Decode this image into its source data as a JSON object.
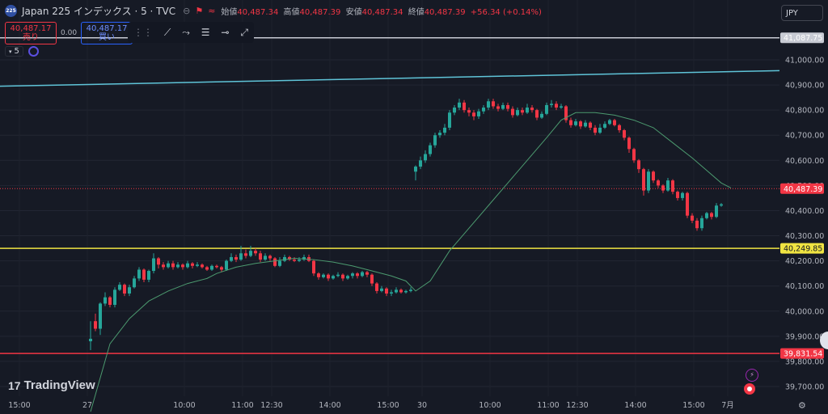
{
  "legend": {
    "badge": "225",
    "symbol": "Japan 225 インデックス · 5 · TVC",
    "open_label": "始値",
    "open": "40,487.34",
    "high_label": "高値",
    "high": "40,487.39",
    "low_label": "安値",
    "low": "40,487.34",
    "close_label": "終値",
    "close": "40,487.39",
    "change": "+56.34 (+0.14%)"
  },
  "trade": {
    "sell_price": "40,487.17",
    "sell_label": "売り",
    "spread": "0.00",
    "buy_price": "40,487.17",
    "buy_label": "買い"
  },
  "interval": {
    "value": "5"
  },
  "currency": "JPY",
  "logo_text": "TradingView",
  "colors": {
    "up": "#26a69a",
    "down": "#f23645",
    "ma": "#4c9a6f",
    "trendline": "#5fc4d8",
    "white_line": "#c8cbd4",
    "yellow_line": "#f0e442",
    "red_line": "#f23645",
    "bg": "#161a25"
  },
  "icons": [
    "magnet-icon",
    "trend-line-icon",
    "path-icon",
    "horizontal-rays-icon",
    "ray-icon",
    "extended-line-icon",
    "lightning-alert-icon",
    "record-icon",
    "gear-icon"
  ],
  "chart_data": {
    "type": "candlestick",
    "y_ticks": [
      39700,
      39800,
      39900,
      40000,
      40100,
      40200,
      40300,
      40400,
      40500,
      40600,
      40700,
      40800,
      40900,
      41000
    ],
    "y_tick_labels": [
      "39,700.00",
      "39,800.00",
      "39,900.00",
      "40,000.00",
      "40,100.00",
      "40,200.00",
      "40,300.00",
      "40,400.00",
      "40,500.00",
      "40,600.00",
      "40,700.00",
      "40,800.00",
      "40,900.00",
      "41,000.00"
    ],
    "ylim": [
      39660,
      41150
    ],
    "x_labels": [
      {
        "label": "15:00",
        "i": -14
      },
      {
        "label": "27",
        "i": 0
      },
      {
        "label": "10:00",
        "i": 20
      },
      {
        "label": "11:00",
        "i": 32
      },
      {
        "label": "12:30",
        "i": 38
      },
      {
        "label": "14:00",
        "i": 50
      },
      {
        "label": "15:00",
        "i": 62
      },
      {
        "label": "30",
        "i": 69
      },
      {
        "label": "10:00",
        "i": 83
      },
      {
        "label": "11:00",
        "i": 95
      },
      {
        "label": "12:30",
        "i": 101
      },
      {
        "label": "14:00",
        "i": 113
      },
      {
        "label": "15:00",
        "i": 125
      },
      {
        "label": "7月",
        "i": 132
      }
    ],
    "horizontal_lines": [
      {
        "price": 41087.75,
        "label": "41,087.75",
        "color": "#c8cbd4"
      },
      {
        "price": 40487.39,
        "label": "40,487.39",
        "color": "#f23645",
        "dotted": true
      },
      {
        "price": 40249.85,
        "label": "40,249.85",
        "color": "#f0e442"
      },
      {
        "price": 39831.54,
        "label": "39,831.54",
        "color": "#f23645"
      }
    ],
    "trendline": {
      "from": 40895,
      "to": 40957
    },
    "candles": [
      [
        39880,
        39890,
        39845,
        39960
      ],
      [
        39960,
        39930,
        39920,
        39990
      ],
      [
        39930,
        40030,
        39905,
        40035
      ],
      [
        40030,
        40055,
        40020,
        40075
      ],
      [
        40055,
        40025,
        40015,
        40060
      ],
      [
        40025,
        40085,
        40015,
        40095
      ],
      [
        40085,
        40105,
        40080,
        40115
      ],
      [
        40105,
        40070,
        40060,
        40110
      ],
      [
        40070,
        40095,
        40060,
        40105
      ],
      [
        40095,
        40130,
        40090,
        40140
      ],
      [
        40130,
        40165,
        40120,
        40175
      ],
      [
        40165,
        40125,
        40115,
        40170
      ],
      [
        40125,
        40160,
        40115,
        40165
      ],
      [
        40160,
        40210,
        40150,
        40230
      ],
      [
        40210,
        40185,
        40170,
        40215
      ],
      [
        40185,
        40175,
        40165,
        40195
      ],
      [
        40175,
        40190,
        40170,
        40200
      ],
      [
        40190,
        40175,
        40165,
        40200
      ],
      [
        40175,
        40185,
        40170,
        40195
      ],
      [
        40185,
        40175,
        40165,
        40190
      ],
      [
        40175,
        40190,
        40170,
        40200
      ],
      [
        40190,
        40180,
        40170,
        40195
      ],
      [
        40180,
        40185,
        40175,
        40195
      ],
      [
        40185,
        40175,
        40170,
        40190
      ],
      [
        40175,
        40165,
        40160,
        40180
      ],
      [
        40165,
        40180,
        40160,
        40185
      ],
      [
        40180,
        40175,
        40170,
        40185
      ],
      [
        40175,
        40165,
        40155,
        40180
      ],
      [
        40165,
        40200,
        40160,
        40205
      ],
      [
        40200,
        40215,
        40195,
        40230
      ],
      [
        40215,
        40205,
        40195,
        40225
      ],
      [
        40205,
        40230,
        40200,
        40260
      ],
      [
        40230,
        40220,
        40210,
        40245
      ],
      [
        40220,
        40240,
        40215,
        40260
      ],
      [
        40240,
        40230,
        40220,
        40250
      ],
      [
        40230,
        40205,
        40195,
        40240
      ],
      [
        40205,
        40220,
        40200,
        40230
      ],
      [
        40220,
        40210,
        40200,
        40225
      ],
      [
        40210,
        40180,
        40175,
        40215
      ],
      [
        40180,
        40200,
        40175,
        40215
      ],
      [
        40200,
        40215,
        40195,
        40225
      ],
      [
        40215,
        40205,
        40200,
        40220
      ],
      [
        40205,
        40200,
        40195,
        40215
      ],
      [
        40200,
        40205,
        40195,
        40215
      ],
      [
        40205,
        40215,
        40200,
        40225
      ],
      [
        40215,
        40200,
        40195,
        40225
      ],
      [
        40200,
        40150,
        40140,
        40205
      ],
      [
        40150,
        40135,
        40125,
        40155
      ],
      [
        40135,
        40145,
        40130,
        40150
      ],
      [
        40145,
        40130,
        40120,
        40150
      ],
      [
        40130,
        40140,
        40125,
        40145
      ],
      [
        40140,
        40145,
        40135,
        40155
      ],
      [
        40145,
        40130,
        40120,
        40150
      ],
      [
        40130,
        40140,
        40125,
        40145
      ],
      [
        40140,
        40150,
        40130,
        40155
      ],
      [
        40150,
        40140,
        40130,
        40155
      ],
      [
        40140,
        40155,
        40135,
        40160
      ],
      [
        40155,
        40145,
        40135,
        40160
      ],
      [
        40145,
        40110,
        40100,
        40150
      ],
      [
        40110,
        40080,
        40070,
        40115
      ],
      [
        40080,
        40090,
        40075,
        40100
      ],
      [
        40090,
        40070,
        40060,
        40095
      ],
      [
        40070,
        40075,
        40060,
        40085
      ],
      [
        40075,
        40085,
        40070,
        40095
      ],
      [
        40085,
        40075,
        40070,
        40090
      ],
      [
        40075,
        40080,
        40070,
        40085
      ],
      [
        40080,
        40085,
        40075,
        40095
      ],
      [
        40555,
        40575,
        40520,
        40580
      ],
      [
        40575,
        40600,
        40565,
        40615
      ],
      [
        40600,
        40625,
        40590,
        40640
      ],
      [
        40625,
        40660,
        40615,
        40670
      ],
      [
        40660,
        40700,
        40650,
        40710
      ],
      [
        40700,
        40710,
        40690,
        40720
      ],
      [
        40710,
        40730,
        40700,
        40745
      ],
      [
        40730,
        40790,
        40720,
        40800
      ],
      [
        40790,
        40810,
        40780,
        40820
      ],
      [
        40810,
        40830,
        40800,
        40845
      ],
      [
        40830,
        40800,
        40790,
        40840
      ],
      [
        40800,
        40790,
        40775,
        40810
      ],
      [
        40790,
        40775,
        40760,
        40800
      ],
      [
        40775,
        40795,
        40765,
        40805
      ],
      [
        40795,
        40810,
        40785,
        40820
      ],
      [
        40810,
        40835,
        40800,
        40845
      ],
      [
        40835,
        40815,
        40805,
        40845
      ],
      [
        40815,
        40805,
        40795,
        40825
      ],
      [
        40805,
        40820,
        40800,
        40830
      ],
      [
        40820,
        40805,
        40795,
        40830
      ],
      [
        40805,
        40780,
        40770,
        40815
      ],
      [
        40780,
        40800,
        40775,
        40810
      ],
      [
        40800,
        40790,
        40780,
        40810
      ],
      [
        40790,
        40810,
        40785,
        40825
      ],
      [
        40810,
        40800,
        40790,
        40820
      ],
      [
        40800,
        40770,
        40760,
        40805
      ],
      [
        40770,
        40785,
        40765,
        40795
      ],
      [
        40785,
        40820,
        40780,
        40830
      ],
      [
        40820,
        40825,
        40810,
        40840
      ],
      [
        40825,
        40810,
        40800,
        40835
      ],
      [
        40810,
        40815,
        40805,
        40825
      ],
      [
        40815,
        40760,
        40750,
        40820
      ],
      [
        40760,
        40740,
        40730,
        40770
      ],
      [
        40740,
        40755,
        40735,
        40765
      ],
      [
        40755,
        40735,
        40725,
        40760
      ],
      [
        40735,
        40750,
        40730,
        40760
      ],
      [
        40750,
        40730,
        40720,
        40755
      ],
      [
        40730,
        40710,
        40700,
        40740
      ],
      [
        40710,
        40730,
        40705,
        40745
      ],
      [
        40730,
        40745,
        40725,
        40755
      ],
      [
        40745,
        40760,
        40740,
        40765
      ],
      [
        40760,
        40740,
        40735,
        40765
      ],
      [
        40740,
        40720,
        40710,
        40745
      ],
      [
        40720,
        40690,
        40680,
        40725
      ],
      [
        40690,
        40645,
        40630,
        40695
      ],
      [
        40645,
        40600,
        40590,
        40650
      ],
      [
        40600,
        40565,
        40550,
        40605
      ],
      [
        40565,
        40480,
        40460,
        40570
      ],
      [
        40480,
        40555,
        40470,
        40565
      ],
      [
        40555,
        40520,
        40510,
        40560
      ],
      [
        40520,
        40500,
        40490,
        40525
      ],
      [
        40500,
        40480,
        40470,
        40505
      ],
      [
        40480,
        40520,
        40475,
        40530
      ],
      [
        40520,
        40475,
        40465,
        40525
      ],
      [
        40475,
        40450,
        40440,
        40480
      ],
      [
        40450,
        40470,
        40440,
        40475
      ],
      [
        40470,
        40380,
        40370,
        40475
      ],
      [
        40380,
        40360,
        40350,
        40390
      ],
      [
        40360,
        40330,
        40320,
        40370
      ],
      [
        40330,
        40370,
        40320,
        40380
      ],
      [
        40370,
        40390,
        40365,
        40395
      ],
      [
        40390,
        40375,
        40365,
        40395
      ],
      [
        40375,
        40420,
        40370,
        40430
      ],
      [
        40420,
        40425,
        40415,
        40430
      ]
    ],
    "ma": [
      [
        0,
        39600
      ],
      [
        4,
        39870
      ],
      [
        8,
        39970
      ],
      [
        12,
        40040
      ],
      [
        16,
        40080
      ],
      [
        20,
        40110
      ],
      [
        24,
        40130
      ],
      [
        26,
        40150
      ],
      [
        30,
        40175
      ],
      [
        34,
        40190
      ],
      [
        38,
        40200
      ],
      [
        42,
        40210
      ],
      [
        46,
        40205
      ],
      [
        50,
        40195
      ],
      [
        54,
        40180
      ],
      [
        58,
        40160
      ],
      [
        62,
        40140
      ],
      [
        65,
        40120
      ],
      [
        67,
        40080
      ],
      [
        70,
        40120
      ],
      [
        74,
        40240
      ],
      [
        78,
        40330
      ],
      [
        82,
        40420
      ],
      [
        86,
        40510
      ],
      [
        90,
        40600
      ],
      [
        94,
        40690
      ],
      [
        97,
        40760
      ],
      [
        100,
        40790
      ],
      [
        104,
        40790
      ],
      [
        108,
        40780
      ],
      [
        112,
        40760
      ],
      [
        116,
        40730
      ],
      [
        120,
        40670
      ],
      [
        124,
        40610
      ],
      [
        127,
        40560
      ],
      [
        130,
        40510
      ],
      [
        132,
        40490
      ]
    ]
  }
}
